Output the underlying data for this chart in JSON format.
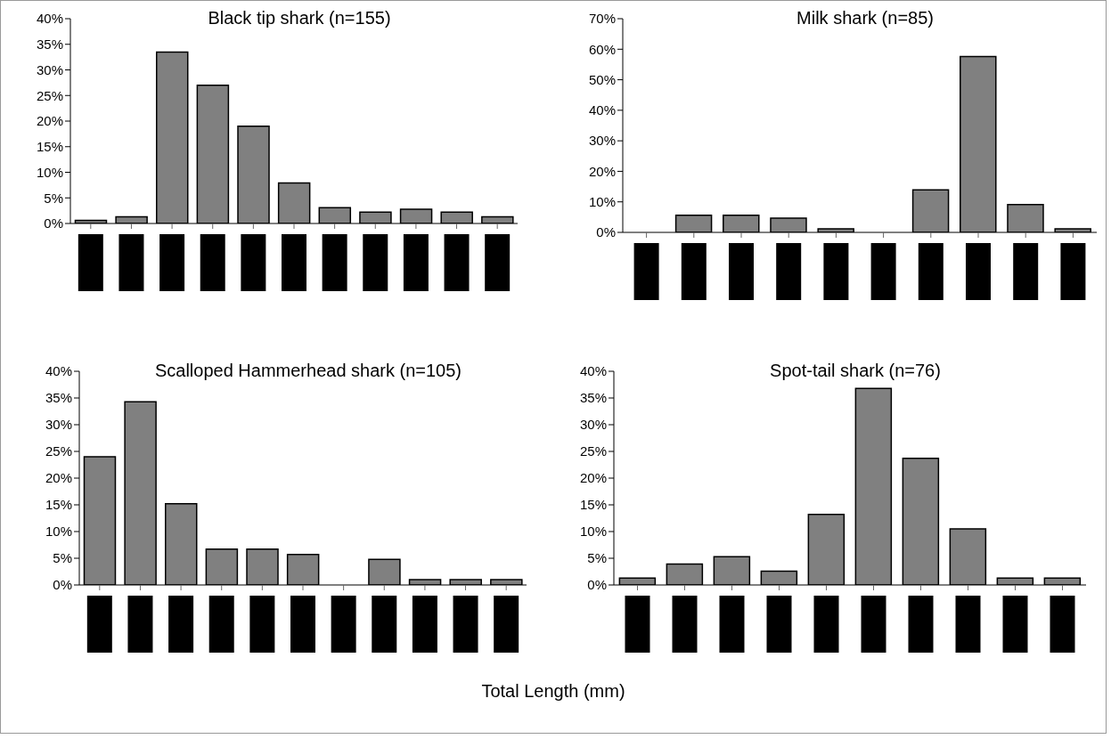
{
  "chart_data": [
    {
      "type": "bar",
      "title": "Black tip shark (n=155)",
      "categories": [
        null,
        null,
        null,
        null,
        null,
        null,
        null,
        null,
        null,
        null,
        null
      ],
      "values": [
        0.6,
        1.3,
        33.5,
        27,
        19,
        7.9,
        3.1,
        2.2,
        2.8,
        2.2,
        1.3
      ],
      "color": "#808080",
      "ylim": [
        0,
        40
      ],
      "yticks": [
        {
          "value": 0,
          "label": "0%"
        },
        {
          "value": 5,
          "label": "5%"
        },
        {
          "value": 10,
          "label": "10%"
        },
        {
          "value": 15,
          "label": "15%"
        },
        {
          "value": 20,
          "label": "20%"
        },
        {
          "value": 25,
          "label": "25%"
        },
        {
          "value": 30,
          "label": "30%"
        },
        {
          "value": 35,
          "label": "35%"
        },
        {
          "value": 40,
          "label": "40%"
        }
      ]
    },
    {
      "type": "bar",
      "title": "Milk shark (n=85)",
      "categories": [
        null,
        null,
        null,
        null,
        null,
        null,
        null,
        null,
        null,
        null
      ],
      "values": [
        0,
        5.6,
        5.6,
        4.7,
        1.2,
        0,
        13.9,
        57.6,
        9.1,
        1.2
      ],
      "color": "#808080",
      "ylim": [
        0,
        70
      ],
      "yticks": [
        {
          "value": 0,
          "label": "0%"
        },
        {
          "value": 10,
          "label": "10%"
        },
        {
          "value": 20,
          "label": "20%"
        },
        {
          "value": 30,
          "label": "30%"
        },
        {
          "value": 40,
          "label": "40%"
        },
        {
          "value": 50,
          "label": "50%"
        },
        {
          "value": 60,
          "label": "60%"
        },
        {
          "value": 70,
          "label": "70%"
        }
      ]
    },
    {
      "type": "bar",
      "title": "Scalloped Hammerhead shark (n=105)",
      "categories": [
        null,
        null,
        null,
        null,
        null,
        null,
        null,
        null,
        null,
        null,
        null
      ],
      "values": [
        24,
        34.3,
        15.2,
        6.7,
        6.7,
        5.7,
        0,
        4.8,
        1,
        1,
        1
      ],
      "color": "#808080",
      "ylim": [
        0,
        40
      ],
      "yticks": [
        {
          "value": 0,
          "label": "0%"
        },
        {
          "value": 5,
          "label": "5%"
        },
        {
          "value": 10,
          "label": "10%"
        },
        {
          "value": 15,
          "label": "15%"
        },
        {
          "value": 20,
          "label": "20%"
        },
        {
          "value": 25,
          "label": "25%"
        },
        {
          "value": 30,
          "label": "30%"
        },
        {
          "value": 35,
          "label": "35%"
        },
        {
          "value": 40,
          "label": "40%"
        }
      ]
    },
    {
      "type": "bar",
      "title": "Spot-tail shark (n=76)",
      "xlabel": "Total Length (mm)",
      "categories": [
        null,
        null,
        null,
        null,
        null,
        null,
        null,
        null,
        null,
        null
      ],
      "values": [
        1.3,
        3.9,
        5.3,
        2.6,
        13.2,
        36.8,
        23.7,
        10.5,
        1.3,
        1.3
      ],
      "color": "#808080",
      "ylim": [
        0,
        40
      ],
      "yticks": [
        {
          "value": 0,
          "label": "0%"
        },
        {
          "value": 5,
          "label": "5%"
        },
        {
          "value": 10,
          "label": "10%"
        },
        {
          "value": 15,
          "label": "15%"
        },
        {
          "value": 20,
          "label": "20%"
        },
        {
          "value": 25,
          "label": "25%"
        },
        {
          "value": 30,
          "label": "30%"
        },
        {
          "value": 35,
          "label": "35%"
        },
        {
          "value": 40,
          "label": "40%"
        }
      ]
    }
  ]
}
